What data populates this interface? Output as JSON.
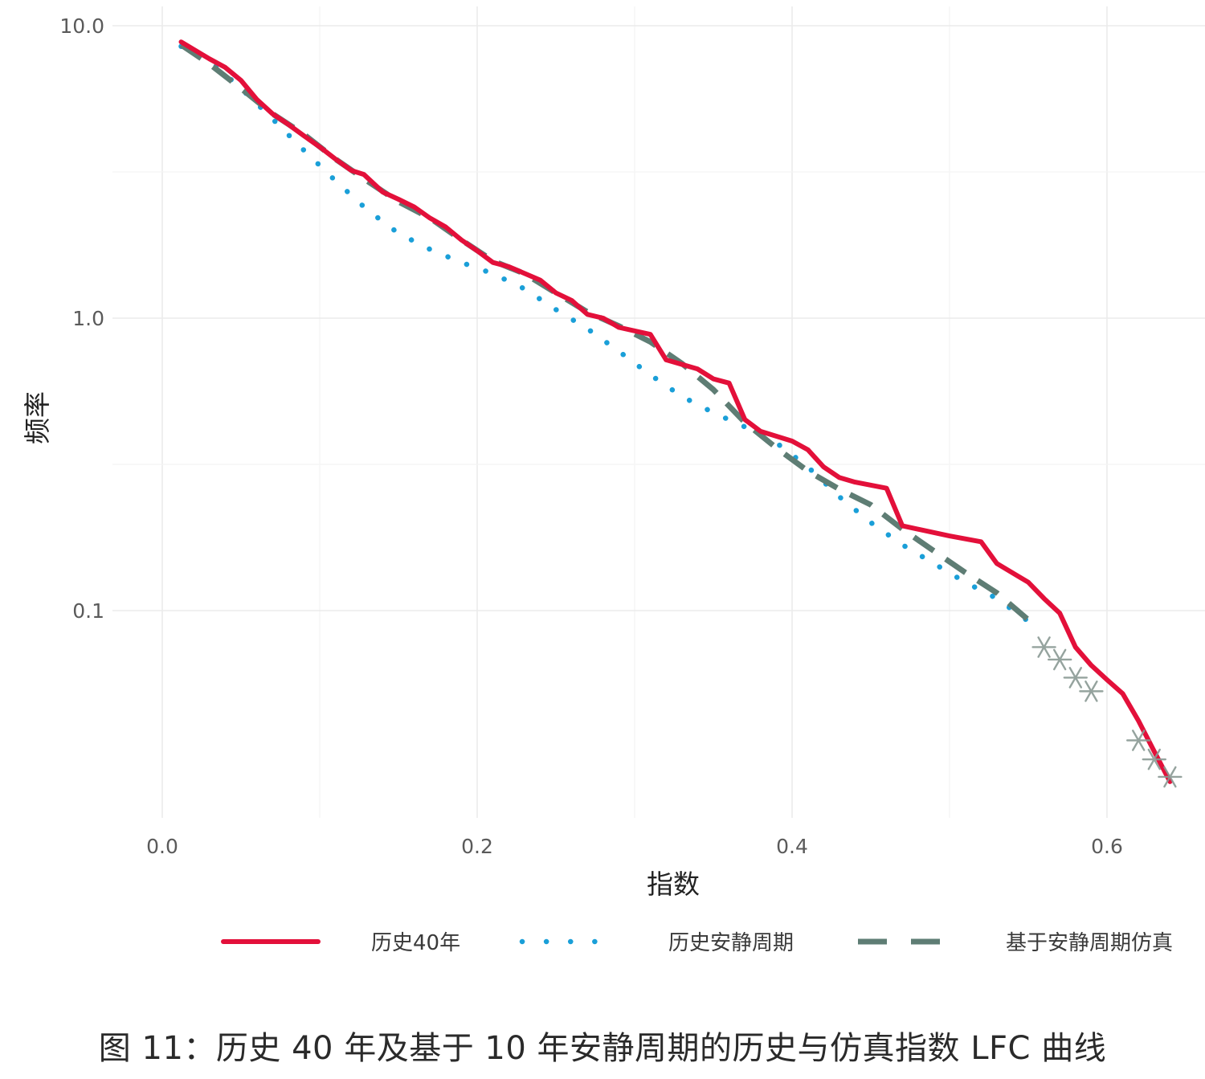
{
  "chart_data": {
    "type": "line",
    "xlabel": "指数",
    "ylabel": "频率",
    "x_ticks": [
      "0.0",
      "0.2",
      "0.4",
      "0.6"
    ],
    "y_ticks": [
      "10.0",
      "1.0",
      "0.1"
    ],
    "y_scale": "log",
    "xlim": [
      0.0,
      0.66
    ],
    "ylim": [
      0.022,
      10.0
    ],
    "grid": true,
    "legend_position": "bottom",
    "series": [
      {
        "name": "历史40年",
        "color": "#e3103a",
        "style": "solid",
        "points": [
          [
            0.012,
            8.8
          ],
          [
            0.03,
            7.7
          ],
          [
            0.04,
            7.2
          ],
          [
            0.05,
            6.5
          ],
          [
            0.06,
            5.6
          ],
          [
            0.07,
            5.0
          ],
          [
            0.08,
            4.6
          ],
          [
            0.09,
            4.2
          ],
          [
            0.1,
            3.85
          ],
          [
            0.11,
            3.5
          ],
          [
            0.12,
            3.2
          ],
          [
            0.128,
            3.1
          ],
          [
            0.14,
            2.7
          ],
          [
            0.15,
            2.55
          ],
          [
            0.16,
            2.4
          ],
          [
            0.17,
            2.2
          ],
          [
            0.18,
            2.05
          ],
          [
            0.19,
            1.85
          ],
          [
            0.2,
            1.7
          ],
          [
            0.21,
            1.55
          ],
          [
            0.22,
            1.5
          ],
          [
            0.24,
            1.35
          ],
          [
            0.25,
            1.22
          ],
          [
            0.26,
            1.15
          ],
          [
            0.27,
            1.03
          ],
          [
            0.28,
            1.0
          ],
          [
            0.29,
            0.93
          ],
          [
            0.31,
            0.88
          ],
          [
            0.32,
            0.72
          ],
          [
            0.34,
            0.67
          ],
          [
            0.35,
            0.62
          ],
          [
            0.36,
            0.6
          ],
          [
            0.37,
            0.45
          ],
          [
            0.38,
            0.41
          ],
          [
            0.4,
            0.38
          ],
          [
            0.41,
            0.355
          ],
          [
            0.42,
            0.31
          ],
          [
            0.43,
            0.285
          ],
          [
            0.44,
            0.275
          ],
          [
            0.46,
            0.262
          ],
          [
            0.47,
            0.195
          ],
          [
            0.5,
            0.18
          ],
          [
            0.52,
            0.172
          ],
          [
            0.53,
            0.145
          ],
          [
            0.55,
            0.125
          ],
          [
            0.56,
            0.11
          ],
          [
            0.57,
            0.098
          ],
          [
            0.58,
            0.075
          ],
          [
            0.59,
            0.065
          ],
          [
            0.6,
            0.058
          ],
          [
            0.61,
            0.052
          ],
          [
            0.62,
            0.042
          ],
          [
            0.63,
            0.033
          ],
          [
            0.64,
            0.026
          ]
        ]
      },
      {
        "name": "历史安静周期",
        "color": "#1a9fd8",
        "style": "dotted",
        "points": [
          [
            0.012,
            8.5
          ],
          [
            0.03,
            7.6
          ],
          [
            0.05,
            6.1
          ],
          [
            0.07,
            4.8
          ],
          [
            0.09,
            3.75
          ],
          [
            0.11,
            2.95
          ],
          [
            0.13,
            2.35
          ],
          [
            0.15,
            1.95
          ],
          [
            0.17,
            1.72
          ],
          [
            0.19,
            1.55
          ],
          [
            0.21,
            1.42
          ],
          [
            0.23,
            1.26
          ],
          [
            0.25,
            1.07
          ],
          [
            0.27,
            0.92
          ],
          [
            0.29,
            0.77
          ],
          [
            0.31,
            0.64
          ],
          [
            0.33,
            0.54
          ],
          [
            0.35,
            0.475
          ],
          [
            0.37,
            0.425
          ],
          [
            0.39,
            0.375
          ],
          [
            0.41,
            0.31
          ],
          [
            0.43,
            0.245
          ],
          [
            0.45,
            0.2
          ],
          [
            0.47,
            0.168
          ],
          [
            0.49,
            0.145
          ],
          [
            0.51,
            0.125
          ],
          [
            0.53,
            0.11
          ],
          [
            0.55,
            0.092
          ]
        ]
      },
      {
        "name": "基于安静周期仿真",
        "color": "#5e7d74",
        "style": "dashed",
        "points": [
          [
            0.012,
            8.6
          ],
          [
            0.03,
            7.4
          ],
          [
            0.05,
            6.1
          ],
          [
            0.07,
            5.0
          ],
          [
            0.09,
            4.25
          ],
          [
            0.11,
            3.5
          ],
          [
            0.13,
            2.95
          ],
          [
            0.15,
            2.5
          ],
          [
            0.17,
            2.2
          ],
          [
            0.19,
            1.85
          ],
          [
            0.21,
            1.57
          ],
          [
            0.23,
            1.42
          ],
          [
            0.25,
            1.22
          ],
          [
            0.27,
            1.05
          ],
          [
            0.29,
            0.94
          ],
          [
            0.31,
            0.83
          ],
          [
            0.33,
            0.7
          ],
          [
            0.35,
            0.57
          ],
          [
            0.37,
            0.44
          ],
          [
            0.39,
            0.36
          ],
          [
            0.41,
            0.3
          ],
          [
            0.43,
            0.26
          ],
          [
            0.45,
            0.23
          ],
          [
            0.47,
            0.19
          ],
          [
            0.49,
            0.16
          ],
          [
            0.51,
            0.135
          ],
          [
            0.53,
            0.115
          ],
          [
            0.55,
            0.093
          ]
        ]
      }
    ],
    "markers": {
      "color": "#8a9a94",
      "shape": "asterisk",
      "points": [
        [
          0.56,
          0.075
        ],
        [
          0.57,
          0.068
        ],
        [
          0.58,
          0.059
        ],
        [
          0.59,
          0.053
        ],
        [
          0.62,
          0.036
        ],
        [
          0.63,
          0.031
        ],
        [
          0.64,
          0.027
        ]
      ]
    }
  },
  "caption": "图 11：历史 40 年及基于 10 年安静周期的历史与仿真指数 LFC 曲线"
}
